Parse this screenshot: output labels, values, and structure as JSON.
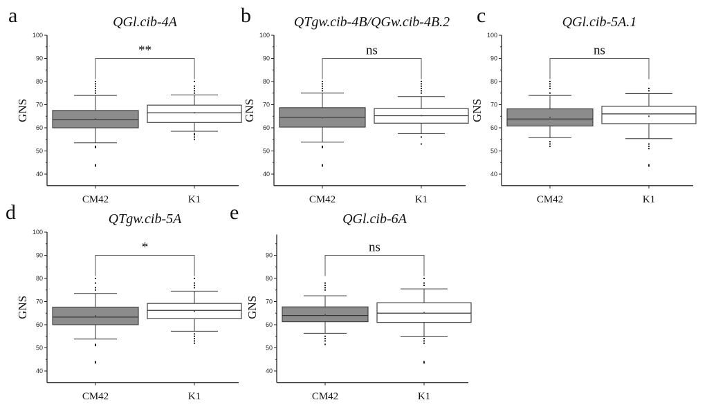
{
  "chart_data": [
    {
      "type": "box",
      "panel_letter": "a",
      "title": "QGl.cib-4A",
      "ylabel": "GNS",
      "categories": [
        "CM42",
        "K1"
      ],
      "ylim": [
        35,
        100
      ],
      "yticks": [
        40,
        50,
        60,
        70,
        80,
        90,
        100
      ],
      "significance": {
        "label": "**",
        "level": 90
      },
      "series": [
        {
          "category": "CM42",
          "fill": "#8c8c8c",
          "q1": 60,
          "median": 63.5,
          "q3": 67.5,
          "whisker_low": 53.5,
          "whisker_high": 74,
          "mean": 63.8,
          "outliers": [
            43.5,
            44,
            51.5,
            52,
            75,
            76,
            77,
            78,
            79,
            80
          ]
        },
        {
          "category": "K1",
          "fill": "#ffffff",
          "q1": 62.3,
          "median": 66.5,
          "q3": 69.8,
          "whisker_low": 58.5,
          "whisker_high": 74.2,
          "mean": 66.5,
          "outliers": [
            55,
            56,
            57,
            57.5,
            75,
            76,
            77,
            78,
            80
          ]
        }
      ]
    },
    {
      "type": "box",
      "panel_letter": "b",
      "title": "QTgw.cib-4B/QGw.cib-4B.2",
      "ylabel": "GNS",
      "categories": [
        "CM42",
        "K1"
      ],
      "ylim": [
        35,
        100
      ],
      "yticks": [
        40,
        50,
        60,
        70,
        80,
        90,
        100
      ],
      "significance": {
        "label": "ns",
        "level": 90
      },
      "series": [
        {
          "category": "CM42",
          "fill": "#8c8c8c",
          "q1": 60.3,
          "median": 64.5,
          "q3": 68.7,
          "whisker_low": 53.8,
          "whisker_high": 75,
          "mean": 64.3,
          "outliers": [
            43.5,
            44,
            51.5,
            52,
            76,
            77,
            78,
            79,
            80
          ]
        },
        {
          "category": "K1",
          "fill": "#ffffff",
          "q1": 62,
          "median": 65.2,
          "q3": 68.3,
          "whisker_low": 57.5,
          "whisker_high": 73.5,
          "mean": 65.3,
          "outliers": [
            53,
            56,
            75,
            76,
            77,
            78,
            79,
            80
          ]
        }
      ]
    },
    {
      "type": "box",
      "panel_letter": "c",
      "title": "QGl.cib-5A.1",
      "ylabel": "GNS",
      "categories": [
        "CM42",
        "K1"
      ],
      "ylim": [
        35,
        100
      ],
      "yticks": [
        40,
        50,
        60,
        70,
        80,
        90,
        100
      ],
      "significance": {
        "label": "ns",
        "level": 90
      },
      "series": [
        {
          "category": "CM42",
          "fill": "#8c8c8c",
          "q1": 60.8,
          "median": 63.8,
          "q3": 68.2,
          "whisker_low": 55.7,
          "whisker_high": 74,
          "mean": 64.5,
          "outliers": [
            52,
            53,
            54,
            75,
            77,
            78,
            79,
            80
          ]
        },
        {
          "category": "K1",
          "fill": "#ffffff",
          "q1": 61.8,
          "median": 66,
          "q3": 69.3,
          "whisker_low": 55.3,
          "whisker_high": 74.8,
          "mean": 65,
          "outliers": [
            43.5,
            44,
            51,
            52,
            53,
            76,
            77
          ]
        }
      ]
    },
    {
      "type": "box",
      "panel_letter": "d",
      "title": "QTgw.cib-5A",
      "ylabel": "GNS",
      "categories": [
        "CM42",
        "K1"
      ],
      "ylim": [
        35,
        100
      ],
      "yticks": [
        40,
        50,
        60,
        70,
        80,
        90,
        100
      ],
      "significance": {
        "label": "*",
        "level": 90
      },
      "series": [
        {
          "category": "CM42",
          "fill": "#8c8c8c",
          "q1": 60,
          "median": 63.3,
          "q3": 67.6,
          "whisker_low": 53.8,
          "whisker_high": 73.5,
          "mean": 63.8,
          "outliers": [
            43.5,
            44,
            51,
            51.5,
            75,
            76,
            78,
            80
          ]
        },
        {
          "category": "K1",
          "fill": "#ffffff",
          "q1": 62.6,
          "median": 66.2,
          "q3": 69.2,
          "whisker_low": 57.2,
          "whisker_high": 74.5,
          "mean": 65.8,
          "outliers": [
            52,
            53,
            54,
            55,
            56,
            76,
            77,
            78,
            80
          ]
        }
      ]
    },
    {
      "type": "box",
      "panel_letter": "e",
      "title": "QGl.cib-6A",
      "ylabel": "GNS",
      "categories": [
        "CM42",
        "K1"
      ],
      "ylim": [
        35,
        99
      ],
      "yticks": [
        40,
        50,
        60,
        70,
        80,
        90
      ],
      "significance": {
        "label": "ns",
        "level": 90
      },
      "series": [
        {
          "category": "CM42",
          "fill": "#8c8c8c",
          "q1": 61.3,
          "median": 64,
          "q3": 67.7,
          "whisker_low": 56.3,
          "whisker_high": 72.5,
          "mean": 64.3,
          "outliers": [
            51.5,
            53,
            54,
            55,
            75,
            76,
            77,
            78
          ]
        },
        {
          "category": "K1",
          "fill": "#ffffff",
          "q1": 61,
          "median": 65,
          "q3": 69.5,
          "whisker_low": 54.8,
          "whisker_high": 75.5,
          "mean": 65.2,
          "outliers": [
            43.5,
            44,
            52,
            53,
            54,
            77,
            78,
            80
          ]
        }
      ]
    }
  ]
}
